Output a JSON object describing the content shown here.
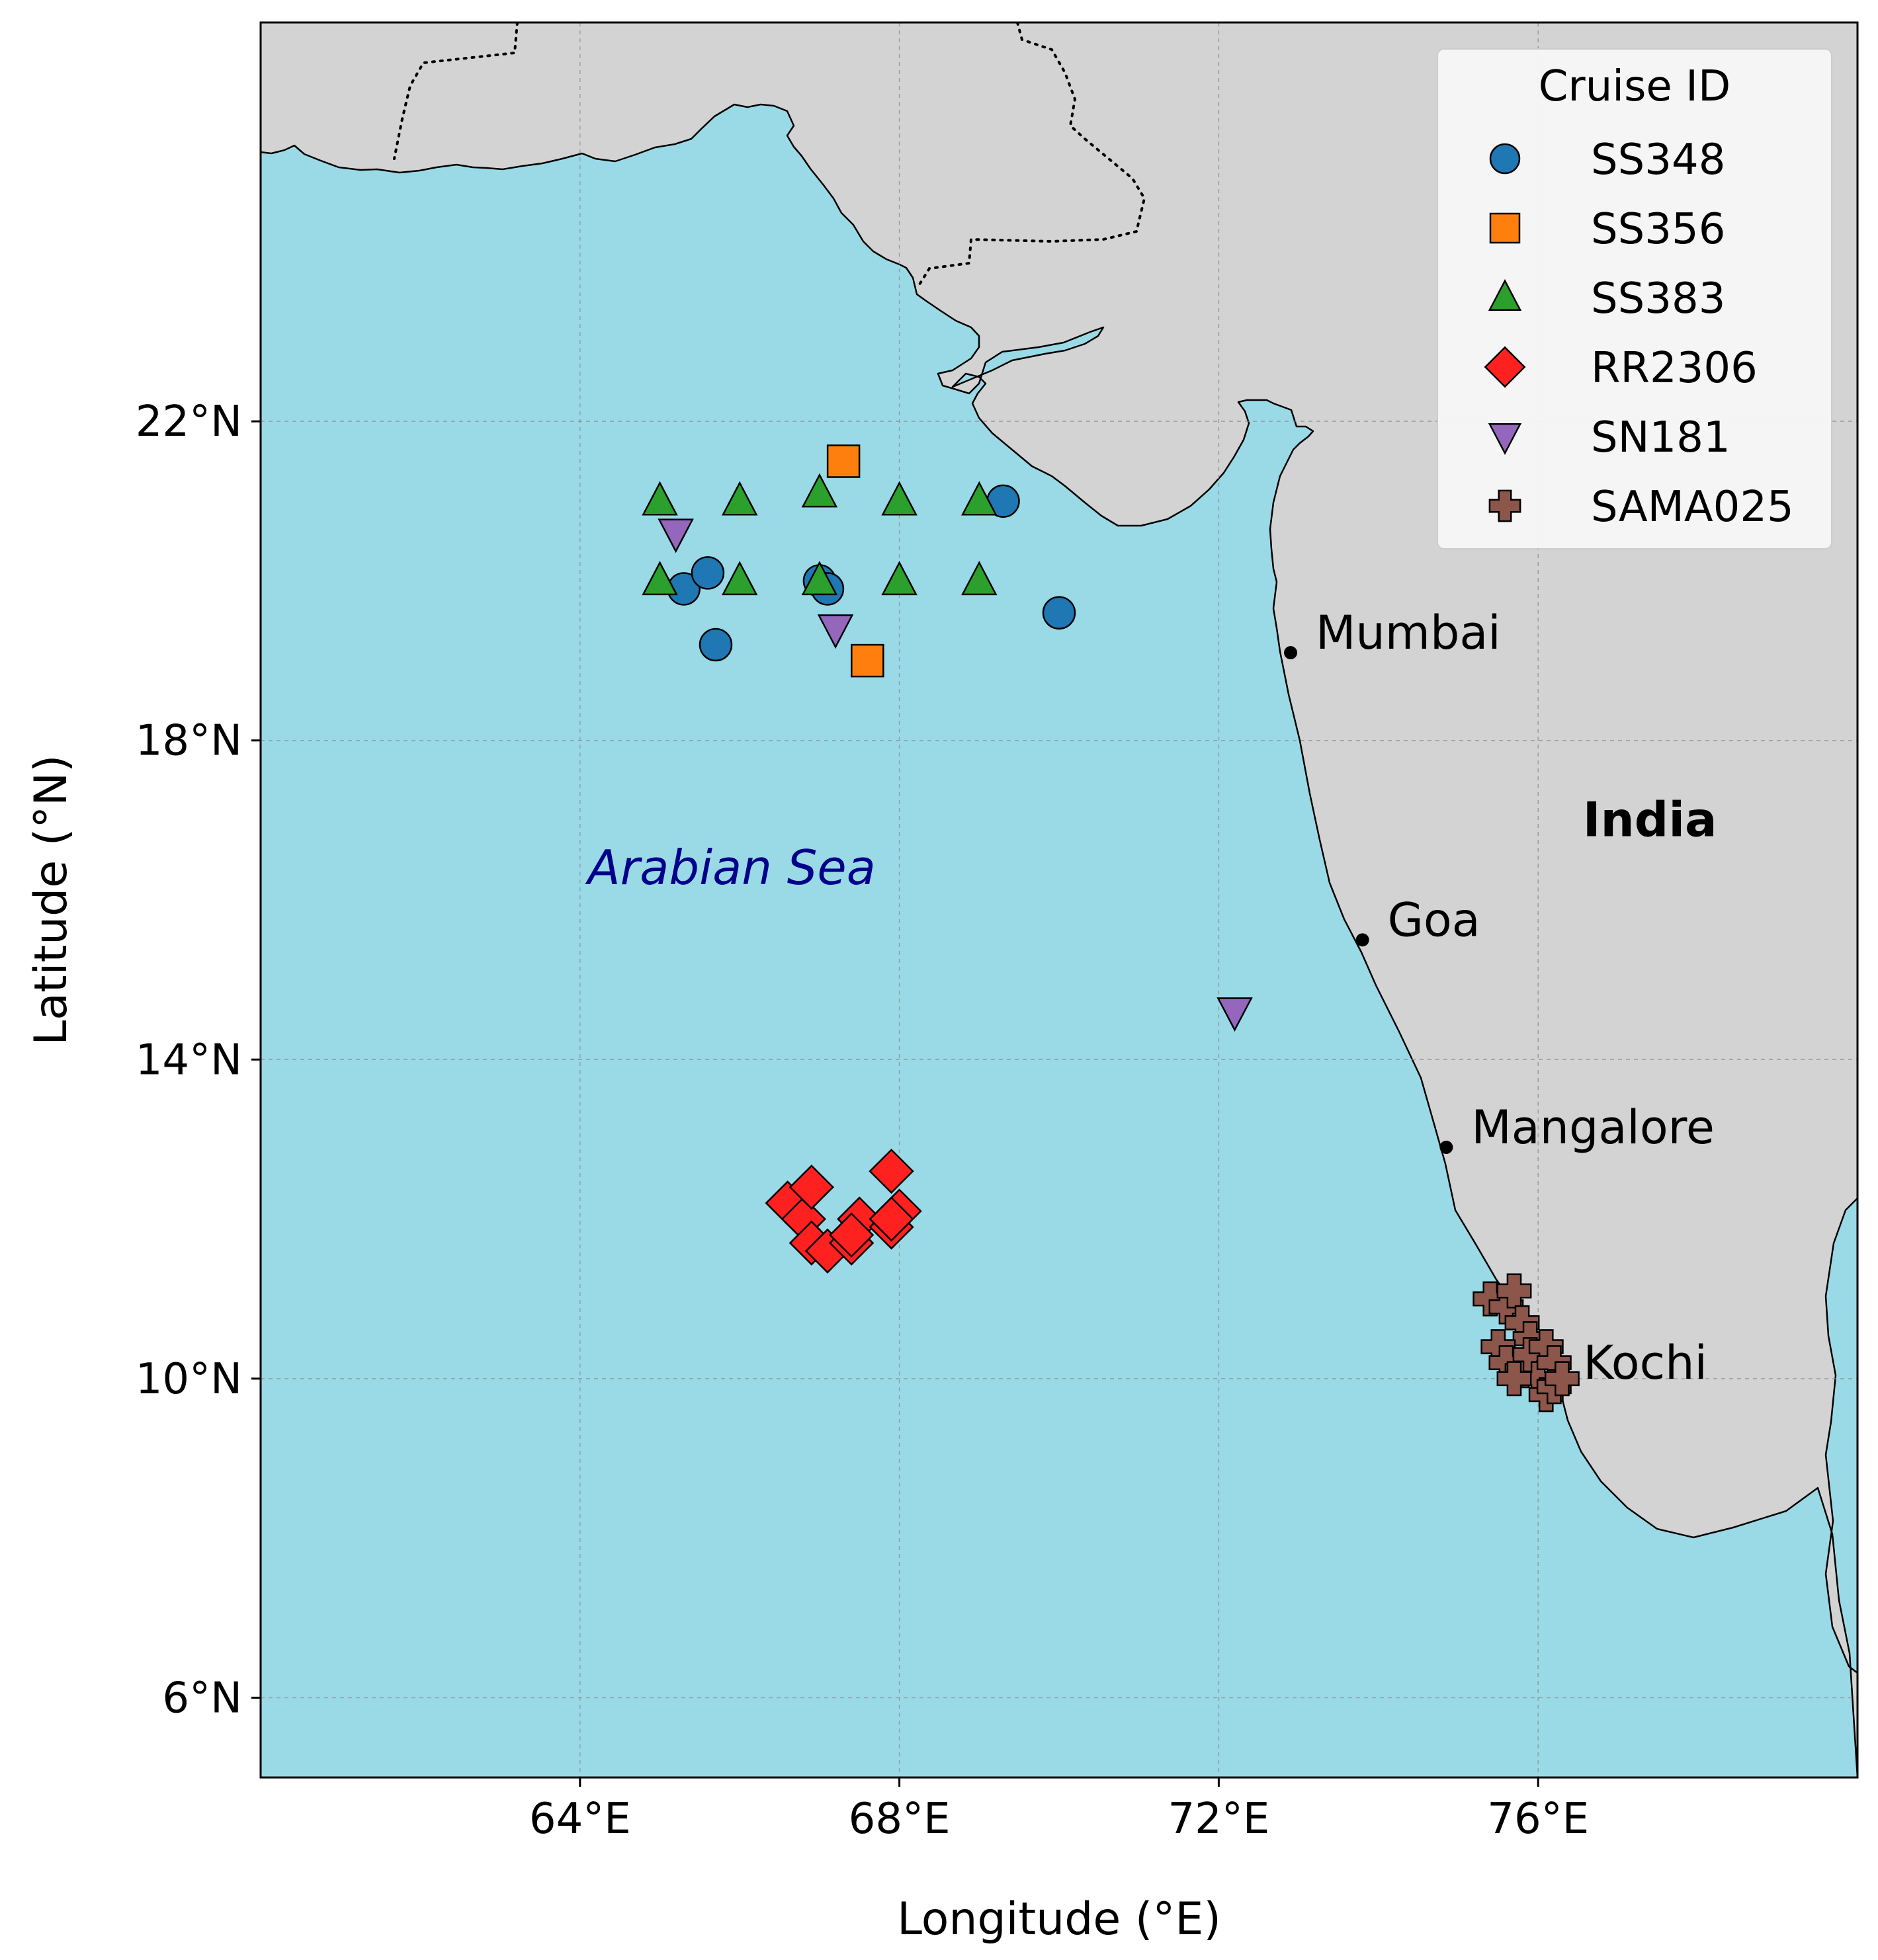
{
  "chart_data": {
    "type": "scatter",
    "xlabel": "Longitude (°E)",
    "ylabel": "Latitude (°N)",
    "xlim": [
      60,
      80
    ],
    "ylim": [
      5,
      27
    ],
    "xticks": [
      64,
      68,
      72,
      76
    ],
    "yticks": [
      6,
      10,
      14,
      18,
      22
    ],
    "xtick_labels": [
      "64°E",
      "68°E",
      "72°E",
      "76°E"
    ],
    "ytick_labels": [
      "6°N",
      "10°N",
      "14°N",
      "18°N",
      "22°N"
    ],
    "grid": true,
    "legend": {
      "title": "Cruise ID",
      "placement": "top-right"
    },
    "ocean_color": "#9adae6",
    "land_color": "#d3d3d3",
    "series": [
      {
        "name": "SS348",
        "marker": "circle",
        "color": "#1f77b4",
        "points": [
          [
            65.3,
            19.9
          ],
          [
            65.6,
            20.1
          ],
          [
            65.7,
            19.2
          ],
          [
            67.0,
            20.0
          ],
          [
            67.1,
            19.9
          ],
          [
            69.3,
            21.0
          ],
          [
            70.0,
            19.6
          ]
        ]
      },
      {
        "name": "SS356",
        "marker": "square",
        "color": "#ff7f0e",
        "points": [
          [
            67.3,
            21.5
          ],
          [
            67.6,
            19.0
          ]
        ]
      },
      {
        "name": "SS383",
        "marker": "triangle-up",
        "color": "#2ca02c",
        "points": [
          [
            65.0,
            21.0
          ],
          [
            66.0,
            21.0
          ],
          [
            67.0,
            21.1
          ],
          [
            68.0,
            21.0
          ],
          [
            69.0,
            21.0
          ],
          [
            65.0,
            20.0
          ],
          [
            66.0,
            20.0
          ],
          [
            67.0,
            20.0
          ],
          [
            68.0,
            20.0
          ],
          [
            69.0,
            20.0
          ]
        ]
      },
      {
        "name": "RR2306",
        "marker": "diamond",
        "color": "#ff2020",
        "points": [
          [
            66.6,
            12.2
          ],
          [
            66.8,
            12.0
          ],
          [
            66.9,
            12.4
          ],
          [
            66.9,
            11.7
          ],
          [
            67.1,
            11.6
          ],
          [
            67.4,
            11.7
          ],
          [
            67.5,
            12.0
          ],
          [
            67.9,
            12.6
          ],
          [
            67.9,
            11.9
          ],
          [
            68.0,
            12.1
          ],
          [
            67.9,
            12.0
          ],
          [
            67.4,
            11.8
          ]
        ]
      },
      {
        "name": "SN181",
        "marker": "triangle-down",
        "color": "#9467bd",
        "points": [
          [
            65.2,
            20.6
          ],
          [
            67.2,
            19.4
          ],
          [
            72.2,
            14.6
          ]
        ]
      },
      {
        "name": "SAMA025",
        "marker": "plus",
        "color": "#8c564b",
        "points": [
          [
            75.4,
            11.0
          ],
          [
            75.6,
            10.9
          ],
          [
            75.7,
            11.1
          ],
          [
            75.8,
            10.7
          ],
          [
            75.9,
            10.5
          ],
          [
            75.5,
            10.4
          ],
          [
            75.6,
            10.2
          ],
          [
            75.8,
            10.1
          ],
          [
            75.9,
            10.3
          ],
          [
            76.0,
            10.0
          ],
          [
            76.1,
            10.4
          ],
          [
            76.2,
            10.2
          ],
          [
            76.1,
            9.8
          ],
          [
            76.2,
            9.9
          ],
          [
            76.3,
            10.0
          ],
          [
            75.7,
            10.0
          ]
        ]
      }
    ],
    "cities": [
      {
        "name": "Mumbai",
        "lon": 72.9,
        "lat": 19.1
      },
      {
        "name": "Goa",
        "lon": 73.8,
        "lat": 15.5
      },
      {
        "name": "Mangalore",
        "lon": 74.85,
        "lat": 12.9
      },
      {
        "name": "Kochi",
        "lon": 76.25,
        "lat": 9.95
      }
    ],
    "region_labels": [
      {
        "text": "India",
        "lon": 77.4,
        "lat": 16.8,
        "style": "bold"
      },
      {
        "text": "Arabian Sea",
        "lon": 65.9,
        "lat": 16.2,
        "style": "italic",
        "color": "#00008b"
      }
    ]
  }
}
